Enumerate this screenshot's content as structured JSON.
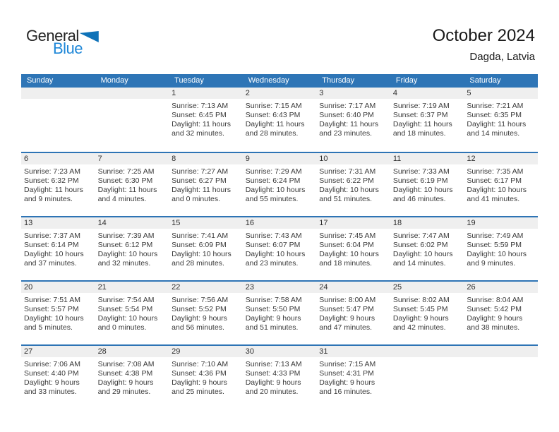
{
  "logo": {
    "word1": "General",
    "word2": "Blue"
  },
  "header": {
    "title": "October 2024",
    "location": "Dagda, Latvia"
  },
  "colors": {
    "header_blue": "#2e75b6",
    "row_border_blue": "#2e74b5",
    "day_strip_gray": "#efefef",
    "logo_blue": "#1e87d8",
    "logo_triangle_blue": "#0e72b8"
  },
  "calendar": {
    "weekdays": [
      "Sunday",
      "Monday",
      "Tuesday",
      "Wednesday",
      "Thursday",
      "Friday",
      "Saturday"
    ],
    "weeks": [
      {
        "cells": [
          null,
          null,
          {
            "day": "1",
            "sunrise": "Sunrise: 7:13 AM",
            "sunset": "Sunset: 6:45 PM",
            "daylight_lines": [
              "Daylight: 11 hours",
              "and 32 minutes."
            ]
          },
          {
            "day": "2",
            "sunrise": "Sunrise: 7:15 AM",
            "sunset": "Sunset: 6:43 PM",
            "daylight_lines": [
              "Daylight: 11 hours",
              "and 28 minutes."
            ]
          },
          {
            "day": "3",
            "sunrise": "Sunrise: 7:17 AM",
            "sunset": "Sunset: 6:40 PM",
            "daylight_lines": [
              "Daylight: 11 hours",
              "and 23 minutes."
            ]
          },
          {
            "day": "4",
            "sunrise": "Sunrise: 7:19 AM",
            "sunset": "Sunset: 6:37 PM",
            "daylight_lines": [
              "Daylight: 11 hours",
              "and 18 minutes."
            ]
          },
          {
            "day": "5",
            "sunrise": "Sunrise: 7:21 AM",
            "sunset": "Sunset: 6:35 PM",
            "daylight_lines": [
              "Daylight: 11 hours",
              "and 14 minutes."
            ]
          }
        ]
      },
      {
        "cells": [
          {
            "day": "6",
            "sunrise": "Sunrise: 7:23 AM",
            "sunset": "Sunset: 6:32 PM",
            "daylight_lines": [
              "Daylight: 11 hours",
              "and 9 minutes."
            ]
          },
          {
            "day": "7",
            "sunrise": "Sunrise: 7:25 AM",
            "sunset": "Sunset: 6:30 PM",
            "daylight_lines": [
              "Daylight: 11 hours",
              "and 4 minutes."
            ]
          },
          {
            "day": "8",
            "sunrise": "Sunrise: 7:27 AM",
            "sunset": "Sunset: 6:27 PM",
            "daylight_lines": [
              "Daylight: 11 hours",
              "and 0 minutes."
            ]
          },
          {
            "day": "9",
            "sunrise": "Sunrise: 7:29 AM",
            "sunset": "Sunset: 6:24 PM",
            "daylight_lines": [
              "Daylight: 10 hours",
              "and 55 minutes."
            ]
          },
          {
            "day": "10",
            "sunrise": "Sunrise: 7:31 AM",
            "sunset": "Sunset: 6:22 PM",
            "daylight_lines": [
              "Daylight: 10 hours",
              "and 51 minutes."
            ]
          },
          {
            "day": "11",
            "sunrise": "Sunrise: 7:33 AM",
            "sunset": "Sunset: 6:19 PM",
            "daylight_lines": [
              "Daylight: 10 hours",
              "and 46 minutes."
            ]
          },
          {
            "day": "12",
            "sunrise": "Sunrise: 7:35 AM",
            "sunset": "Sunset: 6:17 PM",
            "daylight_lines": [
              "Daylight: 10 hours",
              "and 41 minutes."
            ]
          }
        ]
      },
      {
        "cells": [
          {
            "day": "13",
            "sunrise": "Sunrise: 7:37 AM",
            "sunset": "Sunset: 6:14 PM",
            "daylight_lines": [
              "Daylight: 10 hours",
              "and 37 minutes."
            ]
          },
          {
            "day": "14",
            "sunrise": "Sunrise: 7:39 AM",
            "sunset": "Sunset: 6:12 PM",
            "daylight_lines": [
              "Daylight: 10 hours",
              "and 32 minutes."
            ]
          },
          {
            "day": "15",
            "sunrise": "Sunrise: 7:41 AM",
            "sunset": "Sunset: 6:09 PM",
            "daylight_lines": [
              "Daylight: 10 hours",
              "and 28 minutes."
            ]
          },
          {
            "day": "16",
            "sunrise": "Sunrise: 7:43 AM",
            "sunset": "Sunset: 6:07 PM",
            "daylight_lines": [
              "Daylight: 10 hours",
              "and 23 minutes."
            ]
          },
          {
            "day": "17",
            "sunrise": "Sunrise: 7:45 AM",
            "sunset": "Sunset: 6:04 PM",
            "daylight_lines": [
              "Daylight: 10 hours",
              "and 18 minutes."
            ]
          },
          {
            "day": "18",
            "sunrise": "Sunrise: 7:47 AM",
            "sunset": "Sunset: 6:02 PM",
            "daylight_lines": [
              "Daylight: 10 hours",
              "and 14 minutes."
            ]
          },
          {
            "day": "19",
            "sunrise": "Sunrise: 7:49 AM",
            "sunset": "Sunset: 5:59 PM",
            "daylight_lines": [
              "Daylight: 10 hours",
              "and 9 minutes."
            ]
          }
        ]
      },
      {
        "cells": [
          {
            "day": "20",
            "sunrise": "Sunrise: 7:51 AM",
            "sunset": "Sunset: 5:57 PM",
            "daylight_lines": [
              "Daylight: 10 hours",
              "and 5 minutes."
            ]
          },
          {
            "day": "21",
            "sunrise": "Sunrise: 7:54 AM",
            "sunset": "Sunset: 5:54 PM",
            "daylight_lines": [
              "Daylight: 10 hours",
              "and 0 minutes."
            ]
          },
          {
            "day": "22",
            "sunrise": "Sunrise: 7:56 AM",
            "sunset": "Sunset: 5:52 PM",
            "daylight_lines": [
              "Daylight: 9 hours",
              "and 56 minutes."
            ]
          },
          {
            "day": "23",
            "sunrise": "Sunrise: 7:58 AM",
            "sunset": "Sunset: 5:50 PM",
            "daylight_lines": [
              "Daylight: 9 hours",
              "and 51 minutes."
            ]
          },
          {
            "day": "24",
            "sunrise": "Sunrise: 8:00 AM",
            "sunset": "Sunset: 5:47 PM",
            "daylight_lines": [
              "Daylight: 9 hours",
              "and 47 minutes."
            ]
          },
          {
            "day": "25",
            "sunrise": "Sunrise: 8:02 AM",
            "sunset": "Sunset: 5:45 PM",
            "daylight_lines": [
              "Daylight: 9 hours",
              "and 42 minutes."
            ]
          },
          {
            "day": "26",
            "sunrise": "Sunrise: 8:04 AM",
            "sunset": "Sunset: 5:42 PM",
            "daylight_lines": [
              "Daylight: 9 hours",
              "and 38 minutes."
            ]
          }
        ]
      },
      {
        "cells": [
          {
            "day": "27",
            "sunrise": "Sunrise: 7:06 AM",
            "sunset": "Sunset: 4:40 PM",
            "daylight_lines": [
              "Daylight: 9 hours",
              "and 33 minutes."
            ]
          },
          {
            "day": "28",
            "sunrise": "Sunrise: 7:08 AM",
            "sunset": "Sunset: 4:38 PM",
            "daylight_lines": [
              "Daylight: 9 hours",
              "and 29 minutes."
            ]
          },
          {
            "day": "29",
            "sunrise": "Sunrise: 7:10 AM",
            "sunset": "Sunset: 4:36 PM",
            "daylight_lines": [
              "Daylight: 9 hours",
              "and 25 minutes."
            ]
          },
          {
            "day": "30",
            "sunrise": "Sunrise: 7:13 AM",
            "sunset": "Sunset: 4:33 PM",
            "daylight_lines": [
              "Daylight: 9 hours",
              "and 20 minutes."
            ]
          },
          {
            "day": "31",
            "sunrise": "Sunrise: 7:15 AM",
            "sunset": "Sunset: 4:31 PM",
            "daylight_lines": [
              "Daylight: 9 hours",
              "and 16 minutes."
            ]
          },
          null,
          null
        ]
      }
    ]
  }
}
